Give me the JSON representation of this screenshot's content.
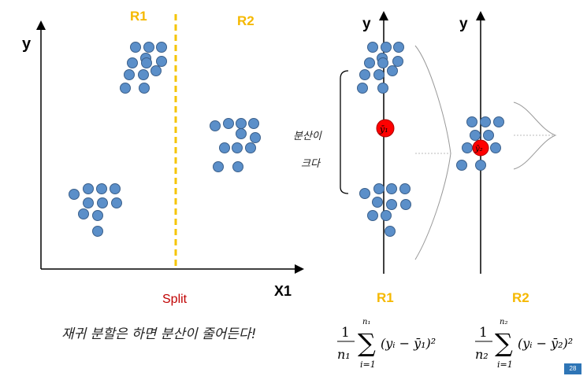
{
  "colors": {
    "point_fill": "#5b8fc9",
    "point_stroke": "#3a5f8a",
    "region_label": "#f5b800",
    "split_line": "#f5c400",
    "split_label": "#c00000",
    "mean_point": "#ff0000",
    "axis": "#000000",
    "page_badge": "#2e75b6"
  },
  "left_panel": {
    "y_axis_label": "y",
    "x_axis_label": "X1",
    "region1_label": "R1",
    "region2_label": "R2",
    "split_label": "Split",
    "handwritten_note": "재귀 분할은 하면 분산이 줄어든다!"
  },
  "right_panel": {
    "r1": {
      "axis_label": "y",
      "region_label": "R1",
      "mean_label": "ȳ₁",
      "bracket_note_line1": "분산이",
      "bracket_note_line2": "크다",
      "formula": {
        "prefix": "1",
        "denominator": "n₁",
        "upper": "n₁",
        "lower": "i=1",
        "body": "(yᵢ − ȳ₁)²"
      }
    },
    "r2": {
      "axis_label": "y",
      "region_label": "R2",
      "mean_label": "ȳ₂",
      "formula": {
        "prefix": "1",
        "denominator": "n₂",
        "upper": "n₂",
        "lower": "i=1",
        "body": "(yᵢ − ȳ₂)²"
      }
    }
  },
  "page_number": "28"
}
